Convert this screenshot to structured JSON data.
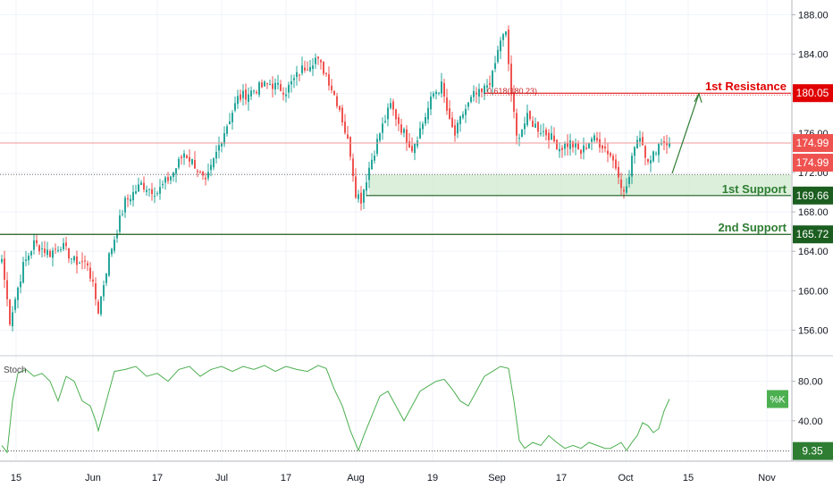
{
  "chart_data": [
    {
      "type": "candlestick",
      "ylim": [
        153.5,
        189.5
      ],
      "y_ticks": [
        156,
        160,
        164,
        168,
        172,
        176,
        180,
        184,
        188
      ],
      "y_tick_labels": [
        "156.00",
        "160.00",
        "164.00",
        "168.00",
        "172.00",
        "176.00",
        "180.00",
        "184.00",
        "188.00"
      ],
      "x_tick_labels": [
        "15",
        "Jun",
        "17",
        "Jul",
        "17",
        "Aug",
        "19",
        "Sep",
        "17",
        "Oct",
        "15",
        "Nov"
      ],
      "grid": true,
      "colors": {
        "up": "#26a69a",
        "down": "#ef5350",
        "resistance": "#e00000",
        "support": "#2e7d32",
        "zone_fill": "#cfe9cf"
      },
      "anchors": [
        {
          "i": 0,
          "v": 163.2
        },
        {
          "i": 3,
          "v": 157.0
        },
        {
          "i": 8,
          "v": 162.5
        },
        {
          "i": 12,
          "v": 164.8
        },
        {
          "i": 18,
          "v": 163.8
        },
        {
          "i": 22,
          "v": 164.7
        },
        {
          "i": 27,
          "v": 163.0
        },
        {
          "i": 32,
          "v": 162.8
        },
        {
          "i": 36,
          "v": 158.0
        },
        {
          "i": 40,
          "v": 163.5
        },
        {
          "i": 46,
          "v": 169.0
        },
        {
          "i": 52,
          "v": 170.8
        },
        {
          "i": 58,
          "v": 170.0
        },
        {
          "i": 64,
          "v": 172.0
        },
        {
          "i": 68,
          "v": 174.0
        },
        {
          "i": 72,
          "v": 172.8
        },
        {
          "i": 76,
          "v": 170.8
        },
        {
          "i": 82,
          "v": 175.5
        },
        {
          "i": 88,
          "v": 179.5
        },
        {
          "i": 95,
          "v": 180.5
        },
        {
          "i": 100,
          "v": 181.0
        },
        {
          "i": 106,
          "v": 180.3
        },
        {
          "i": 112,
          "v": 182.5
        },
        {
          "i": 117,
          "v": 183.6
        },
        {
          "i": 121,
          "v": 182.0
        },
        {
          "i": 126,
          "v": 178.5
        },
        {
          "i": 130,
          "v": 174.0
        },
        {
          "i": 132,
          "v": 170.0
        },
        {
          "i": 134,
          "v": 169.3
        },
        {
          "i": 137,
          "v": 172.5
        },
        {
          "i": 141,
          "v": 176.0
        },
        {
          "i": 145,
          "v": 178.8
        },
        {
          "i": 149,
          "v": 176.5
        },
        {
          "i": 153,
          "v": 174.5
        },
        {
          "i": 157,
          "v": 177.0
        },
        {
          "i": 161,
          "v": 180.0
        },
        {
          "i": 164,
          "v": 180.8
        },
        {
          "i": 167,
          "v": 177.0
        },
        {
          "i": 169,
          "v": 175.8
        },
        {
          "i": 172,
          "v": 178.0
        },
        {
          "i": 176,
          "v": 179.8
        },
        {
          "i": 179,
          "v": 180.0
        },
        {
          "i": 183,
          "v": 181.8
        },
        {
          "i": 186,
          "v": 185.5
        },
        {
          "i": 188,
          "v": 186.0
        },
        {
          "i": 190,
          "v": 180.0
        },
        {
          "i": 192,
          "v": 175.5
        },
        {
          "i": 196,
          "v": 177.5
        },
        {
          "i": 200,
          "v": 176.5
        },
        {
          "i": 204,
          "v": 175.8
        },
        {
          "i": 208,
          "v": 174.5
        },
        {
          "i": 212,
          "v": 175.0
        },
        {
          "i": 216,
          "v": 174.0
        },
        {
          "i": 220,
          "v": 175.5
        },
        {
          "i": 224,
          "v": 174.8
        },
        {
          "i": 227,
          "v": 173.8
        },
        {
          "i": 230,
          "v": 172.0
        },
        {
          "i": 232,
          "v": 169.8
        },
        {
          "i": 234,
          "v": 171.5
        },
        {
          "i": 236,
          "v": 175.0
        },
        {
          "i": 238,
          "v": 175.8
        },
        {
          "i": 240,
          "v": 174.0
        },
        {
          "i": 242,
          "v": 173.0
        },
        {
          "i": 244,
          "v": 174.5
        },
        {
          "i": 246,
          "v": 175.2
        },
        {
          "i": 249,
          "v": 174.99
        }
      ],
      "levels": {
        "resistance": {
          "value": 180.05,
          "label": "1st Resistance",
          "price": "180.05"
        },
        "support1": {
          "value": 169.66,
          "label": "1st Support",
          "price": "169.66"
        },
        "support2": {
          "value": 165.72,
          "label": "2nd Support",
          "price": "165.72"
        },
        "support_zone": [
          169.66,
          171.8
        ],
        "dotted_level": 171.8
      },
      "fib_label": "0.618(180.23)",
      "last_price": {
        "value": 174.99,
        "labels": [
          "174.99",
          "174.99"
        ]
      }
    },
    {
      "type": "line",
      "title": "Stoch",
      "ylim": [
        0,
        105
      ],
      "y_ticks": [
        40,
        80
      ],
      "y_tick_labels": [
        "40.00",
        "80.00"
      ],
      "level_line": 9.35,
      "labels": {
        "k": "%K",
        "level": "9.35"
      },
      "color": "#4caf50",
      "series_points": [
        [
          0,
          15
        ],
        [
          2,
          8
        ],
        [
          4,
          60
        ],
        [
          6,
          88
        ],
        [
          9,
          92
        ],
        [
          12,
          85
        ],
        [
          15,
          88
        ],
        [
          18,
          80
        ],
        [
          21,
          60
        ],
        [
          24,
          85
        ],
        [
          27,
          80
        ],
        [
          30,
          60
        ],
        [
          33,
          55
        ],
        [
          35,
          40
        ],
        [
          36,
          30
        ],
        [
          39,
          60
        ],
        [
          42,
          90
        ],
        [
          46,
          92
        ],
        [
          50,
          95
        ],
        [
          54,
          85
        ],
        [
          58,
          88
        ],
        [
          62,
          80
        ],
        [
          66,
          92
        ],
        [
          70,
          95
        ],
        [
          74,
          85
        ],
        [
          78,
          92
        ],
        [
          82,
          95
        ],
        [
          86,
          90
        ],
        [
          90,
          95
        ],
        [
          94,
          92
        ],
        [
          98,
          96
        ],
        [
          102,
          90
        ],
        [
          106,
          95
        ],
        [
          110,
          92
        ],
        [
          114,
          90
        ],
        [
          118,
          96
        ],
        [
          121,
          93
        ],
        [
          124,
          72
        ],
        [
          127,
          55
        ],
        [
          130,
          30
        ],
        [
          133,
          10
        ],
        [
          135,
          25
        ],
        [
          138,
          45
        ],
        [
          141,
          65
        ],
        [
          144,
          70
        ],
        [
          147,
          55
        ],
        [
          150,
          40
        ],
        [
          153,
          55
        ],
        [
          156,
          70
        ],
        [
          159,
          75
        ],
        [
          162,
          80
        ],
        [
          165,
          82
        ],
        [
          168,
          72
        ],
        [
          171,
          60
        ],
        [
          174,
          55
        ],
        [
          177,
          70
        ],
        [
          180,
          85
        ],
        [
          183,
          90
        ],
        [
          186,
          95
        ],
        [
          189,
          93
        ],
        [
          191,
          60
        ],
        [
          193,
          20
        ],
        [
          195,
          12
        ],
        [
          198,
          18
        ],
        [
          201,
          15
        ],
        [
          204,
          25
        ],
        [
          207,
          18
        ],
        [
          210,
          12
        ],
        [
          213,
          15
        ],
        [
          216,
          12
        ],
        [
          219,
          18
        ],
        [
          222,
          15
        ],
        [
          225,
          12
        ],
        [
          227,
          12
        ],
        [
          229,
          15
        ],
        [
          231,
          18
        ],
        [
          233,
          10
        ],
        [
          235,
          18
        ],
        [
          237,
          25
        ],
        [
          239,
          38
        ],
        [
          241,
          35
        ],
        [
          243,
          28
        ],
        [
          245,
          32
        ],
        [
          247,
          50
        ],
        [
          249,
          62
        ]
      ]
    }
  ]
}
